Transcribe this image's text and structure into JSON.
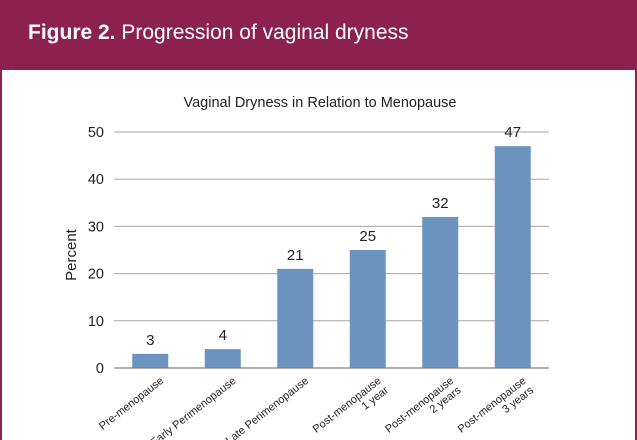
{
  "figure": {
    "label": "Figure 2.",
    "title": "Progression of vaginal dryness"
  },
  "colors": {
    "banner": "#8c2050",
    "bar": "#6b93bd",
    "grid": "#a6a6a6"
  },
  "chart_data": {
    "type": "bar",
    "title": "Vaginal Dryness in Relation to Menopause",
    "ylabel": "Percent",
    "xlabel": "",
    "ylim": [
      0,
      50
    ],
    "yticks": [
      0,
      10,
      20,
      30,
      40,
      50
    ],
    "grid": true,
    "categories": [
      [
        "Pre-menopause"
      ],
      [
        "Early Perimenopause"
      ],
      [
        "Late Perimenopause"
      ],
      [
        "Post-menopause",
        "1 year"
      ],
      [
        "Post-menopause",
        "2 years"
      ],
      [
        "Post-menopause",
        "3 years"
      ]
    ],
    "values": [
      3,
      4,
      21,
      25,
      32,
      47
    ],
    "data_labels": [
      "3",
      "4",
      "21",
      "25",
      "32",
      "47"
    ]
  }
}
